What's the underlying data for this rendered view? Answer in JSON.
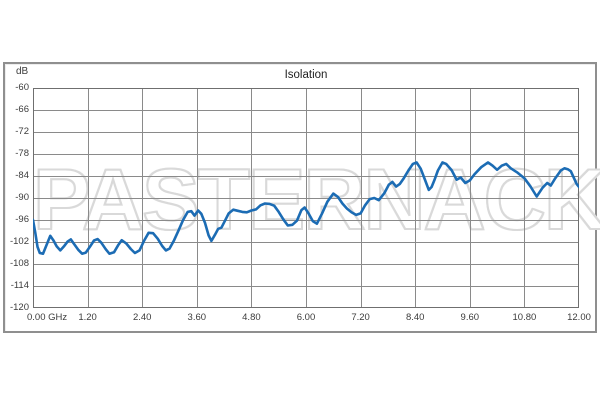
{
  "page": {
    "background": "#ffffff"
  },
  "chart": {
    "title": "Isolation",
    "y_axis_unit_label": "dB",
    "watermark_text": "PASTERNACK",
    "colors": {
      "line": "#1c6cb4",
      "grid": "#8a8a8a",
      "plot_border": "#6f6f6f",
      "frame_border": "#8f8f8f",
      "tick_text": "#3c3c3c",
      "watermark_outline": "#d9d9d9"
    }
  },
  "chart_data": {
    "type": "line",
    "title": "Isolation",
    "ylabel": "dB",
    "x_unit": "GHz",
    "xlim": [
      0,
      12
    ],
    "ylim": [
      -120,
      -60
    ],
    "grid": true,
    "legend_position": "none",
    "x_tick_labels": [
      "0.00 GHz",
      "1.20",
      "2.40",
      "3.60",
      "4.80",
      "6.00",
      "7.20",
      "8.40",
      "9.60",
      "10.80",
      "12.00"
    ],
    "x_tick_values": [
      0,
      1.2,
      2.4,
      3.6,
      4.8,
      6.0,
      7.2,
      8.4,
      9.6,
      10.8,
      12.0
    ],
    "y_tick_labels": [
      "-60",
      "-66",
      "-72",
      "-78",
      "-84",
      "-90",
      "-96",
      "-102",
      "-108",
      "-114",
      "-120"
    ],
    "y_tick_values": [
      -60,
      -66,
      -72,
      -78,
      -84,
      -90,
      -96,
      -102,
      -108,
      -114,
      -120
    ],
    "series": [
      {
        "name": "Isolation",
        "color": "#1c6cb4",
        "points": [
          [
            0.0,
            -96.0
          ],
          [
            0.05,
            -99.5
          ],
          [
            0.1,
            -103.3
          ],
          [
            0.15,
            -105.0
          ],
          [
            0.22,
            -105.2
          ],
          [
            0.3,
            -102.8
          ],
          [
            0.38,
            -100.3
          ],
          [
            0.45,
            -101.6
          ],
          [
            0.52,
            -103.2
          ],
          [
            0.6,
            -104.3
          ],
          [
            0.68,
            -103.2
          ],
          [
            0.76,
            -101.9
          ],
          [
            0.83,
            -101.3
          ],
          [
            0.9,
            -102.5
          ],
          [
            1.0,
            -104.2
          ],
          [
            1.08,
            -105.2
          ],
          [
            1.16,
            -104.9
          ],
          [
            1.25,
            -103.3
          ],
          [
            1.34,
            -101.6
          ],
          [
            1.42,
            -101.2
          ],
          [
            1.5,
            -102.2
          ],
          [
            1.6,
            -104.0
          ],
          [
            1.68,
            -105.2
          ],
          [
            1.78,
            -104.8
          ],
          [
            1.87,
            -102.9
          ],
          [
            1.95,
            -101.5
          ],
          [
            2.05,
            -102.4
          ],
          [
            2.15,
            -103.9
          ],
          [
            2.24,
            -105.0
          ],
          [
            2.34,
            -104.3
          ],
          [
            2.44,
            -101.7
          ],
          [
            2.54,
            -99.5
          ],
          [
            2.64,
            -99.6
          ],
          [
            2.74,
            -101.1
          ],
          [
            2.84,
            -103.1
          ],
          [
            2.92,
            -104.3
          ],
          [
            3.0,
            -103.8
          ],
          [
            3.1,
            -101.5
          ],
          [
            3.2,
            -98.8
          ],
          [
            3.3,
            -96.0
          ],
          [
            3.4,
            -93.8
          ],
          [
            3.48,
            -93.6
          ],
          [
            3.55,
            -94.8
          ],
          [
            3.63,
            -93.4
          ],
          [
            3.7,
            -94.3
          ],
          [
            3.78,
            -96.8
          ],
          [
            3.86,
            -100.2
          ],
          [
            3.92,
            -101.7
          ],
          [
            4.0,
            -100.0
          ],
          [
            4.07,
            -98.4
          ],
          [
            4.14,
            -98.1
          ],
          [
            4.22,
            -96.2
          ],
          [
            4.3,
            -94.2
          ],
          [
            4.4,
            -93.2
          ],
          [
            4.5,
            -93.5
          ],
          [
            4.6,
            -93.8
          ],
          [
            4.7,
            -93.9
          ],
          [
            4.8,
            -93.4
          ],
          [
            4.9,
            -93.1
          ],
          [
            5.0,
            -92.0
          ],
          [
            5.1,
            -91.5
          ],
          [
            5.2,
            -91.6
          ],
          [
            5.3,
            -92.1
          ],
          [
            5.4,
            -93.8
          ],
          [
            5.5,
            -95.8
          ],
          [
            5.6,
            -97.5
          ],
          [
            5.7,
            -97.3
          ],
          [
            5.8,
            -96.2
          ],
          [
            5.9,
            -93.3
          ],
          [
            5.97,
            -92.6
          ],
          [
            6.05,
            -94.1
          ],
          [
            6.15,
            -96.3
          ],
          [
            6.24,
            -97.0
          ],
          [
            6.35,
            -94.3
          ],
          [
            6.47,
            -91.0
          ],
          [
            6.6,
            -88.8
          ],
          [
            6.7,
            -89.7
          ],
          [
            6.8,
            -91.5
          ],
          [
            6.9,
            -92.9
          ],
          [
            7.0,
            -93.9
          ],
          [
            7.1,
            -94.6
          ],
          [
            7.2,
            -94.2
          ],
          [
            7.3,
            -92.0
          ],
          [
            7.4,
            -90.3
          ],
          [
            7.5,
            -90.0
          ],
          [
            7.6,
            -90.6
          ],
          [
            7.72,
            -88.7
          ],
          [
            7.82,
            -86.4
          ],
          [
            7.9,
            -85.6
          ],
          [
            7.98,
            -86.9
          ],
          [
            8.06,
            -86.2
          ],
          [
            8.15,
            -84.6
          ],
          [
            8.25,
            -82.5
          ],
          [
            8.35,
            -80.7
          ],
          [
            8.43,
            -80.3
          ],
          [
            8.52,
            -82.0
          ],
          [
            8.62,
            -85.2
          ],
          [
            8.7,
            -87.8
          ],
          [
            8.76,
            -87.0
          ],
          [
            8.82,
            -85.2
          ],
          [
            8.9,
            -82.5
          ],
          [
            9.0,
            -80.3
          ],
          [
            9.08,
            -80.7
          ],
          [
            9.2,
            -82.4
          ],
          [
            9.31,
            -85.0
          ],
          [
            9.4,
            -84.4
          ],
          [
            9.5,
            -85.9
          ],
          [
            9.6,
            -85.2
          ],
          [
            9.7,
            -83.6
          ],
          [
            9.85,
            -81.6
          ],
          [
            10.0,
            -80.3
          ],
          [
            10.1,
            -81.2
          ],
          [
            10.2,
            -82.3
          ],
          [
            10.3,
            -81.2
          ],
          [
            10.4,
            -80.7
          ],
          [
            10.5,
            -81.9
          ],
          [
            10.65,
            -83.1
          ],
          [
            10.8,
            -84.6
          ],
          [
            10.94,
            -87.0
          ],
          [
            11.07,
            -89.6
          ],
          [
            11.2,
            -87.2
          ],
          [
            11.3,
            -85.9
          ],
          [
            11.38,
            -86.6
          ],
          [
            11.48,
            -84.6
          ],
          [
            11.6,
            -82.5
          ],
          [
            11.68,
            -81.9
          ],
          [
            11.76,
            -82.2
          ],
          [
            11.82,
            -82.7
          ],
          [
            11.88,
            -84.3
          ],
          [
            11.95,
            -86.2
          ],
          [
            12.0,
            -87.0
          ]
        ]
      }
    ]
  }
}
